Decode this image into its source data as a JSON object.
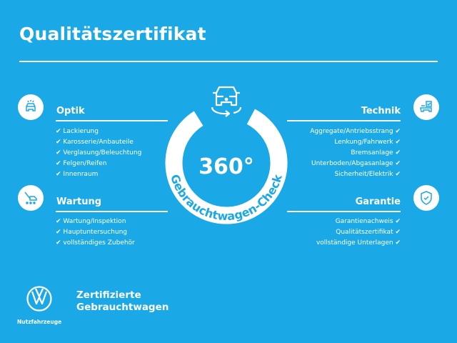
{
  "title": "Qualitätszertifikat",
  "colors": {
    "background": "#1ba8e6",
    "foreground": "#ffffff"
  },
  "center": {
    "value": "360°",
    "ring_text": "Gebrauchtwagen-Check",
    "icon": "car-rotate-icon"
  },
  "check_mark": "✔",
  "sections": {
    "optik": {
      "title": "Optik",
      "icon": "car-lights-icon",
      "items": [
        "Lackierung",
        "Karosserie/Anbauteile",
        "Verglasung/Beleuchtung",
        "Felgen/Reifen",
        "Innenraum"
      ]
    },
    "wartung": {
      "title": "Wartung",
      "icon": "service-wrench-icon",
      "items": [
        "Wartung/Inspektion",
        "Hauptuntersuchung",
        "vollständiges Zubehör"
      ]
    },
    "technik": {
      "title": "Technik",
      "icon": "car-checklist-icon",
      "items": [
        "Aggregate/Antriebsstrang",
        "Lenkung/Fahrwerk",
        "Bremsanlage",
        "Unterboden/Abgasanlage",
        "Sicherheit/Elektrik"
      ]
    },
    "garantie": {
      "title": "Garantie",
      "icon": "shield-check-icon",
      "items": [
        "Garantienachweis",
        "Qualitätszertifikat",
        "vollständige Unterlagen"
      ]
    }
  },
  "footer": {
    "brand": "Nutzfahrzeuge",
    "line1": "Zertifizierte",
    "line2": "Gebrauchtwagen",
    "logo": "vw-logo"
  }
}
